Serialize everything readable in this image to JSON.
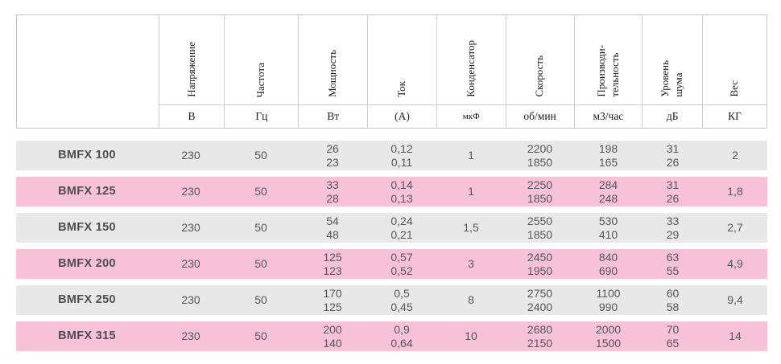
{
  "colors": {
    "row_gray": "#e9e8e8",
    "row_pink": "#f7c2d6",
    "border": "#c6c6c6",
    "data_text": "#565658",
    "header_text": "#1b1b1b"
  },
  "table": {
    "columns": [
      {
        "name": "Напряжение",
        "unit": "В"
      },
      {
        "name": "Частота",
        "unit": "Гц"
      },
      {
        "name": "Мощность",
        "unit": "Вт"
      },
      {
        "name": "Ток",
        "unit": "(А)"
      },
      {
        "name": "Конденсатор",
        "unit": "мкФ"
      },
      {
        "name": "Скорость",
        "unit": "об/мин"
      },
      {
        "name": "Производи-\nтельность",
        "unit": "м3/час"
      },
      {
        "name": "Уровень\nшума",
        "unit": "дБ"
      },
      {
        "name": "Вес",
        "unit": "КГ"
      }
    ],
    "rows": [
      {
        "model": "BMFX 100",
        "values": [
          "230",
          "50",
          "26\n23",
          "0,12\n0,11",
          "1",
          "2200\n1850",
          "198\n165",
          "31\n26",
          "2"
        ]
      },
      {
        "model": "BMFX 125",
        "values": [
          "230",
          "50",
          "33\n28",
          "0,14\n0,13",
          "1",
          "2250\n1850",
          "284\n248",
          "31\n26",
          "1,8"
        ]
      },
      {
        "model": "BMFX 150",
        "values": [
          "230",
          "50",
          "54\n48",
          "0,24\n0,21",
          "1,5",
          "2550\n1850",
          "530\n410",
          "33\n29",
          "2,7"
        ]
      },
      {
        "model": "BMFX 200",
        "values": [
          "230",
          "50",
          "125\n123",
          "0,57\n0,52",
          "3",
          "2450\n1950",
          "840\n690",
          "63\n55",
          "4,9"
        ]
      },
      {
        "model": "BMFX 250",
        "values": [
          "230",
          "50",
          "170\n125",
          "0,5\n0,45",
          "8",
          "2750\n2400",
          "1100\n990",
          "60\n58",
          "9,4"
        ]
      },
      {
        "model": "BMFX 315",
        "values": [
          "230",
          "50",
          "200\n140",
          "0,9\n0,64",
          "10",
          "2680\n2150",
          "2000\n1500",
          "70\n65",
          "14"
        ]
      }
    ]
  }
}
